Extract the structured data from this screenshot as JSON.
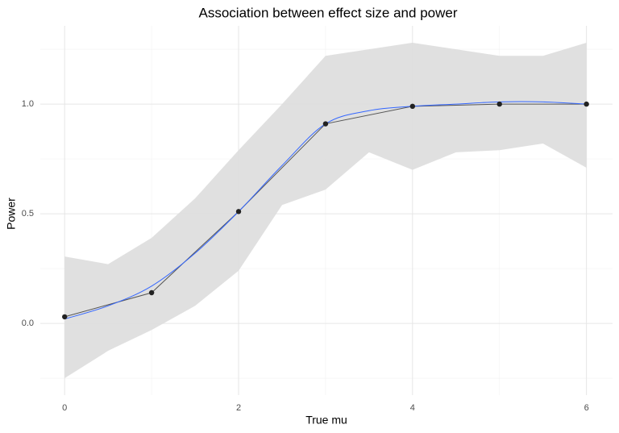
{
  "chart_data": {
    "type": "line",
    "title": "Association between effect size and power",
    "x_label": "True mu",
    "y_label": "Power",
    "xlim": [
      -0.28,
      6.3
    ],
    "ylim": [
      -0.327,
      1.357
    ],
    "xticks": [
      0,
      2,
      4,
      6
    ],
    "yticks": [
      {
        "value": 0,
        "label": "0.0"
      },
      {
        "value": 0.5,
        "label": "0.5"
      },
      {
        "value": 1,
        "label": "1.0"
      }
    ],
    "grid": true,
    "points": {
      "x": [
        0,
        1,
        2,
        3,
        4,
        5,
        6
      ],
      "values": [
        0.03,
        0.14,
        0.51,
        0.91,
        0.99,
        1.0,
        1.0
      ],
      "color": "#222222",
      "line_color": "#555555"
    },
    "smooth": {
      "x": [
        0,
        0.5,
        1,
        1.5,
        2,
        2.5,
        3,
        3.5,
        4,
        4.5,
        5,
        5.5,
        6
      ],
      "values": [
        0.02,
        0.08,
        0.17,
        0.32,
        0.51,
        0.72,
        0.91,
        0.97,
        0.99,
        1.0,
        1.01,
        1.01,
        1.0
      ],
      "upper": [
        0.305,
        0.27,
        0.39,
        0.57,
        0.79,
        1.0,
        1.22,
        1.25,
        1.28,
        1.25,
        1.22,
        1.22,
        1.28
      ],
      "lower": [
        -0.25,
        -0.125,
        -0.03,
        0.08,
        0.24,
        0.54,
        0.61,
        0.78,
        0.7,
        0.78,
        0.79,
        0.82,
        0.71
      ],
      "color": "#3366ff",
      "band_color": "#dddddd"
    }
  }
}
